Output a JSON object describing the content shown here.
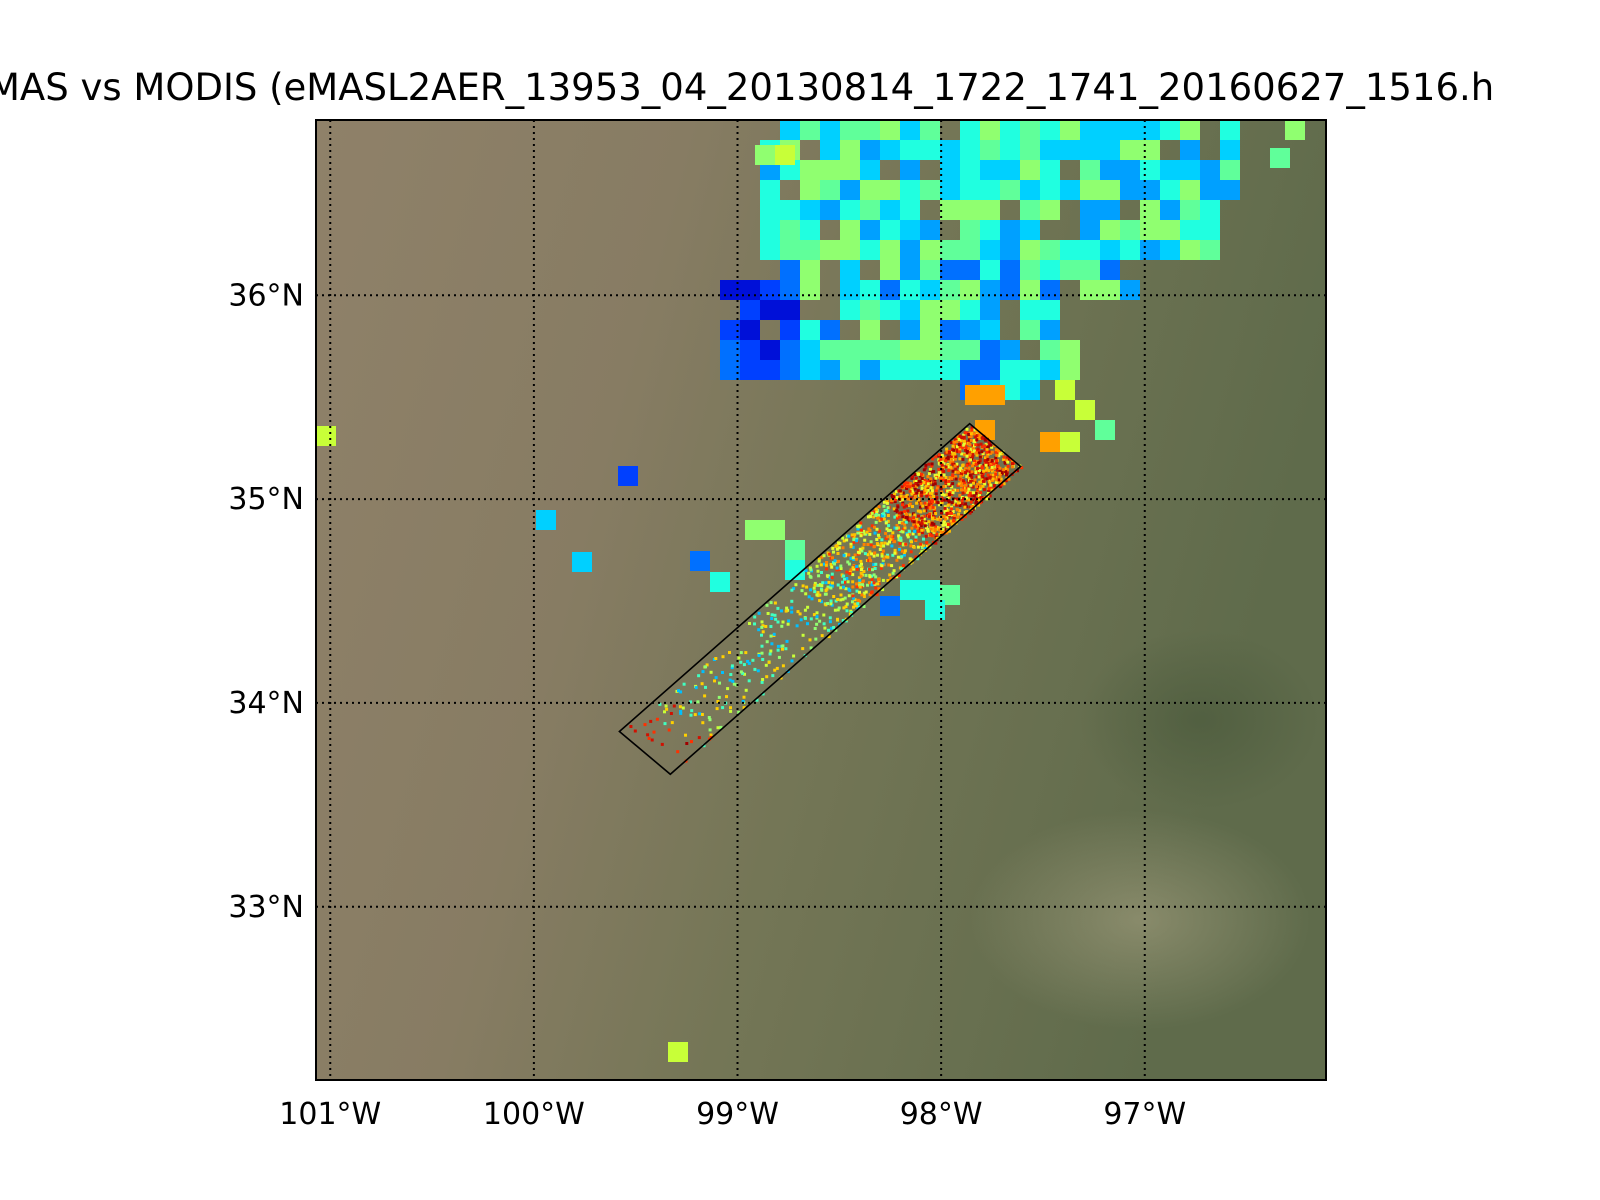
{
  "title": "MAS vs MODIS (eMASL2AER_13953_04_20130814_1722_1741_20160627_1516.h",
  "map": {
    "lat_labels": [
      {
        "lat": 36,
        "label": "36°N"
      },
      {
        "lat": 35,
        "label": "35°N"
      },
      {
        "lat": 34,
        "label": "34°N"
      },
      {
        "lat": 33,
        "label": "33°N"
      }
    ],
    "lon_labels": [
      {
        "lon": -101,
        "label": "101°W"
      },
      {
        "lon": -100,
        "label": "100°W"
      },
      {
        "lon": -99,
        "label": "99°W"
      },
      {
        "lon": -98,
        "label": "98°W"
      },
      {
        "lon": -97,
        "label": "97°W"
      }
    ],
    "extent": {
      "lon_min": -101.07,
      "lon_max": -96.11,
      "lat_min": 32.15,
      "lat_max": 36.86
    },
    "gridlines": "dotted",
    "basemap": "satellite true-color",
    "colors": {
      "land_west": "#8c7d66",
      "land_east": "#6a7452",
      "swath_outline": "#000000"
    },
    "colormap": "jet",
    "flight_swath_corners": [
      {
        "lon": -99.58,
        "lat": 33.86
      },
      {
        "lon": -97.86,
        "lat": 35.37
      },
      {
        "lon": -97.61,
        "lat": 35.16
      },
      {
        "lon": -99.33,
        "lat": 33.65
      }
    ]
  }
}
